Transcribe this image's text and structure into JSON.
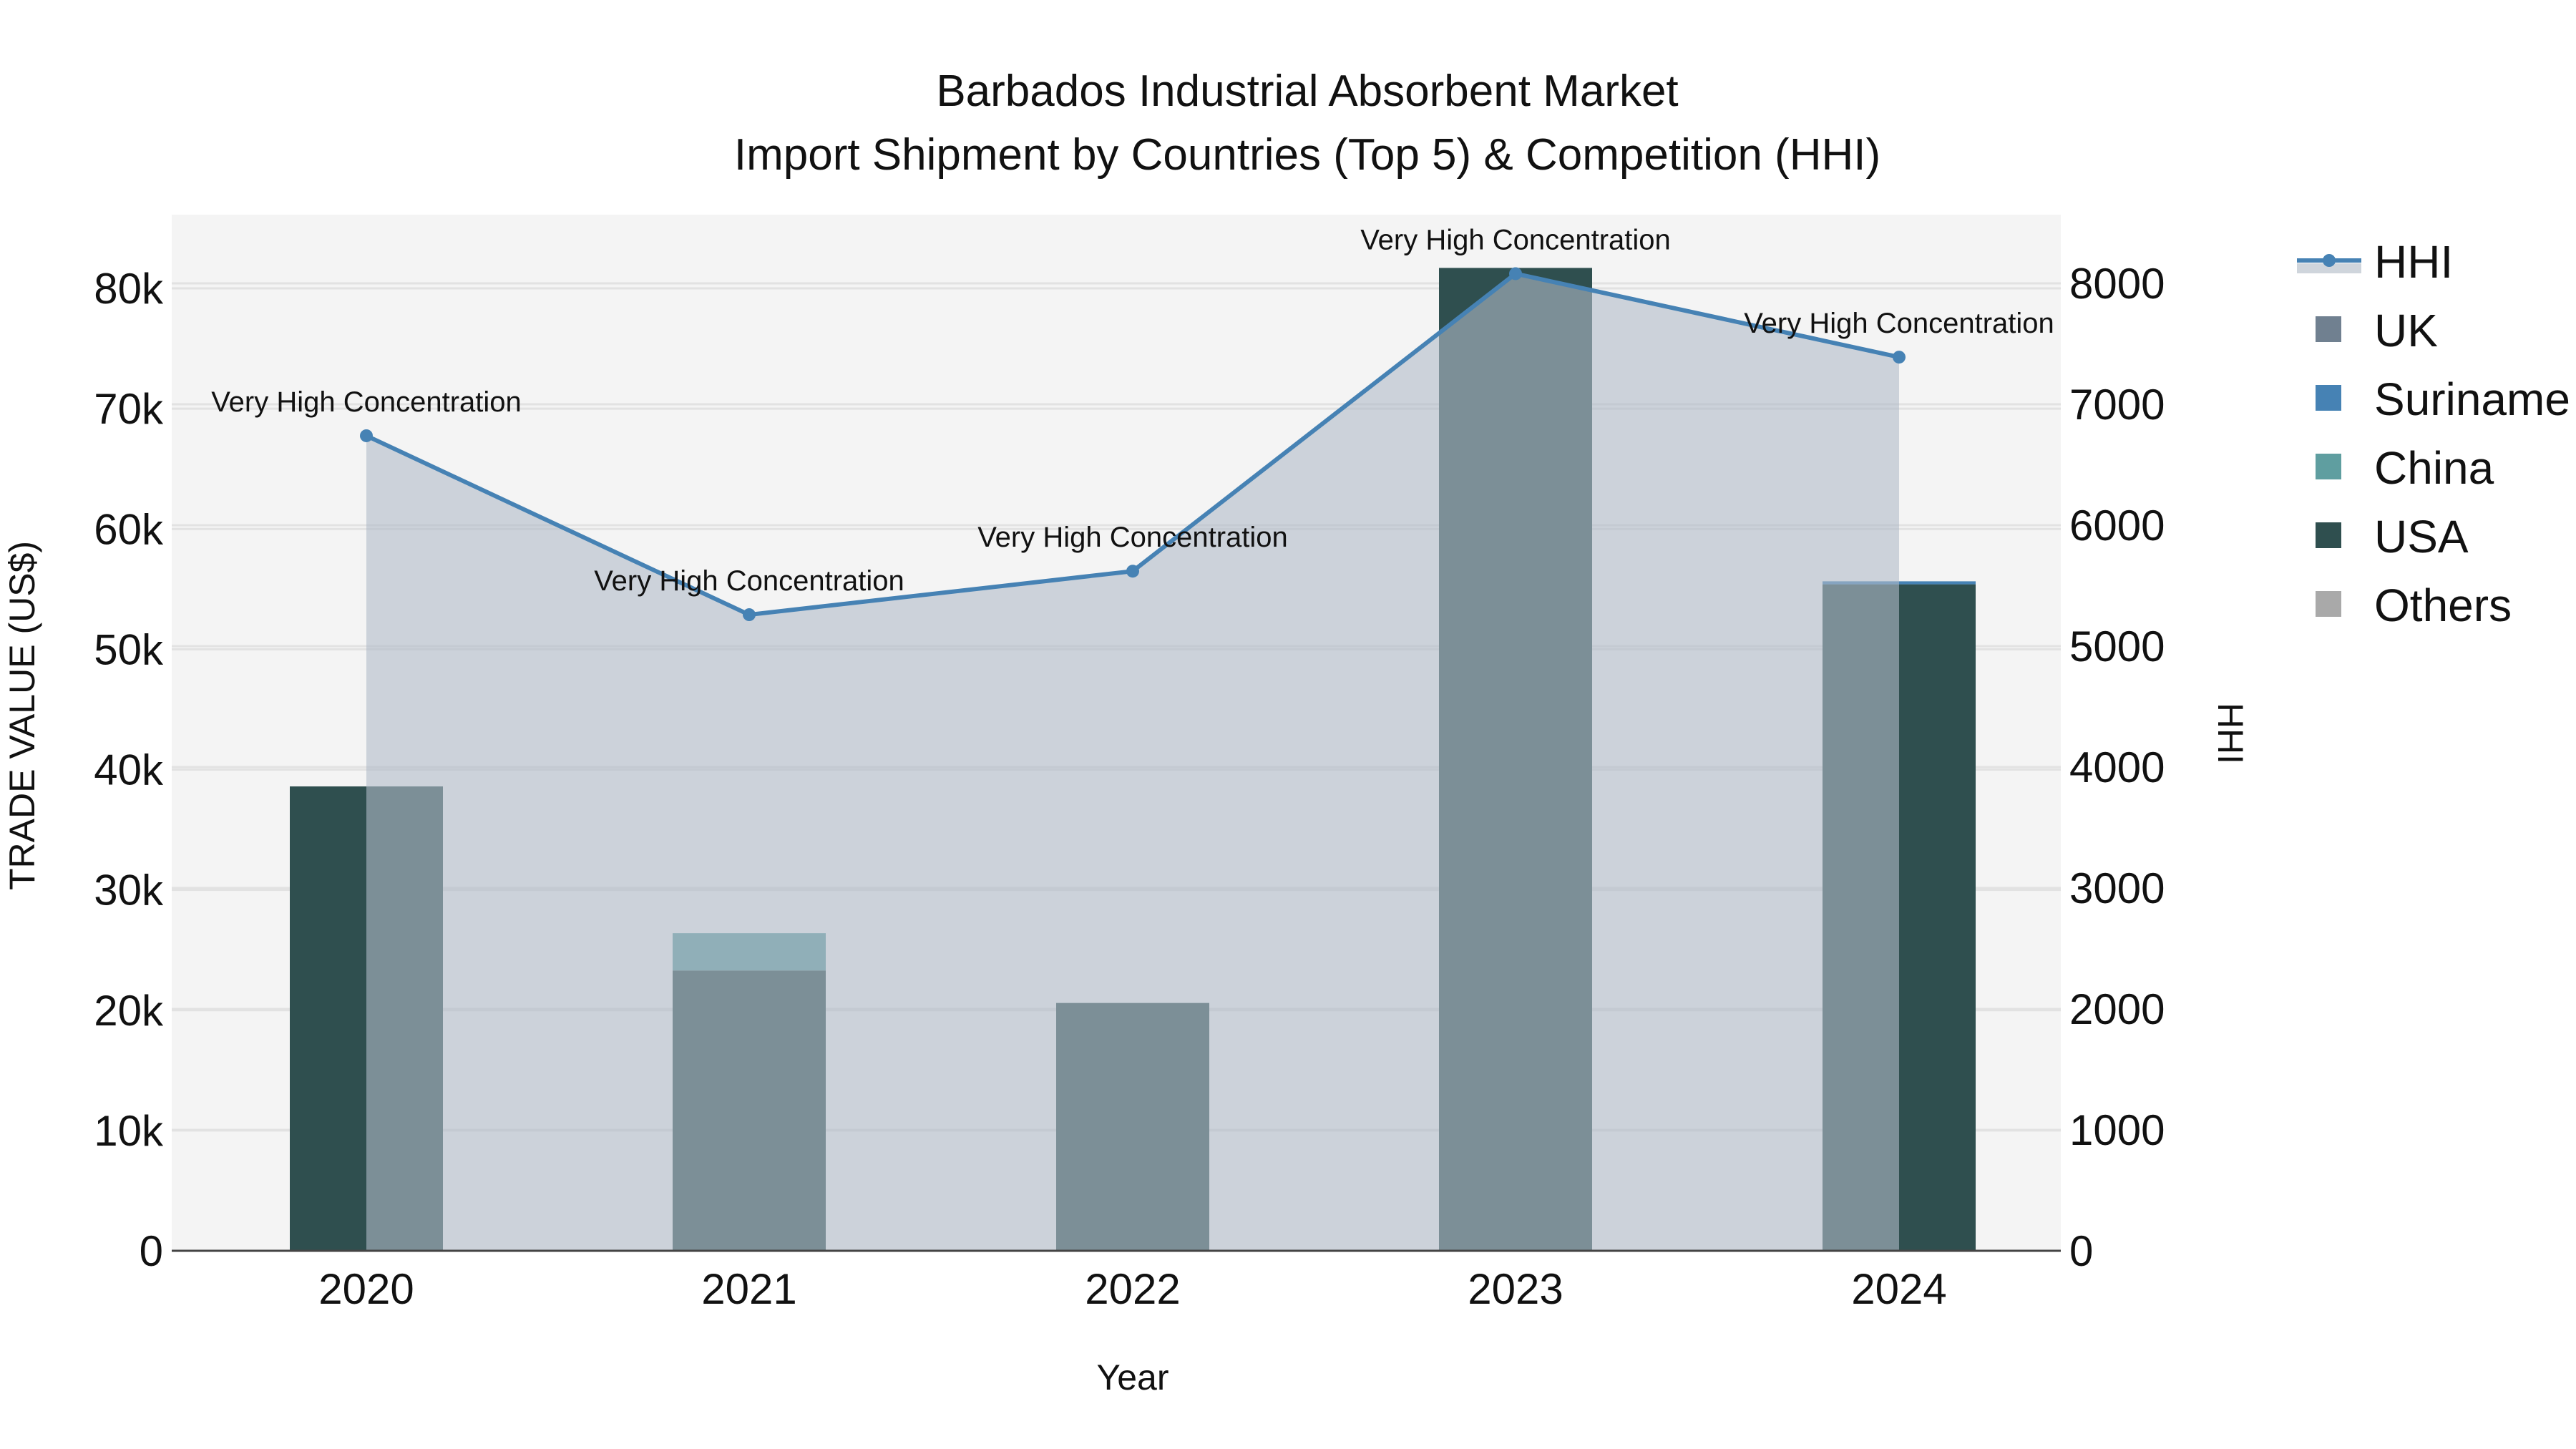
{
  "title": {
    "line1": "Barbados Industrial Absorbent Market",
    "line2": "Import Shipment by Countries (Top 5) & Competition (HHI)"
  },
  "axes": {
    "x_title": "Year",
    "y_left_title": "TRADE VALUE (US$)",
    "y_right_title": "HHI",
    "y_left_ticks": [
      "0",
      "10k",
      "20k",
      "30k",
      "40k",
      "50k",
      "60k",
      "70k",
      "80k"
    ],
    "y_right_ticks": [
      "0",
      "1000",
      "2000",
      "3000",
      "4000",
      "5000",
      "6000",
      "7000",
      "8000"
    ],
    "x_ticks": [
      "2020",
      "2021",
      "2022",
      "2023",
      "2024"
    ]
  },
  "legend": [
    {
      "name": "HHI",
      "type": "line",
      "color": "#4682b4"
    },
    {
      "name": "UK",
      "type": "box",
      "color": "#708090"
    },
    {
      "name": "Suriname",
      "type": "box",
      "color": "#4682b4"
    },
    {
      "name": "China",
      "type": "box",
      "color": "#5f9ea0"
    },
    {
      "name": "USA",
      "type": "box",
      "color": "#2f4f4f"
    },
    {
      "name": "Others",
      "type": "box",
      "color": "#a9a9a9"
    }
  ],
  "colors": {
    "plot_bg": "#f4f4f4",
    "grid": "#e2e2e2",
    "hhi_line": "#4682b4",
    "hhi_fill": "rgba(176,186,200,0.6)",
    "axis_line": "#444444"
  },
  "chart_data": {
    "type": "bar",
    "title": "Barbados Industrial Absorbent Market — Import Shipment by Countries (Top 5) & Competition (HHI)",
    "xlabel": "Year",
    "ylabel": "TRADE VALUE (US$)",
    "y2label": "HHI",
    "categories": [
      "2020",
      "2021",
      "2022",
      "2023",
      "2024"
    ],
    "ylim": [
      0,
      86000
    ],
    "y2lim": [
      0,
      8600
    ],
    "stacked": true,
    "series": [
      {
        "name": "USA",
        "color": "#2f4f4f",
        "values": [
          38600,
          23300,
          20600,
          81700,
          55400
        ]
      },
      {
        "name": "China",
        "color": "#5f9ea0",
        "values": [
          0,
          3100,
          0,
          0,
          0
        ]
      },
      {
        "name": "Suriname",
        "color": "#4682b4",
        "values": [
          0,
          0,
          0,
          0,
          250
        ]
      },
      {
        "name": "UK",
        "color": "#708090",
        "values": [
          0,
          0,
          0,
          0,
          0
        ]
      },
      {
        "name": "Others",
        "color": "#a9a9a9",
        "values": [
          0,
          0,
          0,
          0,
          0
        ]
      }
    ],
    "line_series": {
      "name": "HHI",
      "axis": "right",
      "color": "#4682b4",
      "fill": "tozeroy",
      "values": [
        6740,
        5260,
        5620,
        8080,
        7390
      ],
      "annotations": [
        "Very High Concentration",
        "Very High Concentration",
        "Very High Concentration",
        "Very High Concentration",
        "Very High Concentration"
      ]
    },
    "grid": true,
    "legend_position": "right"
  }
}
